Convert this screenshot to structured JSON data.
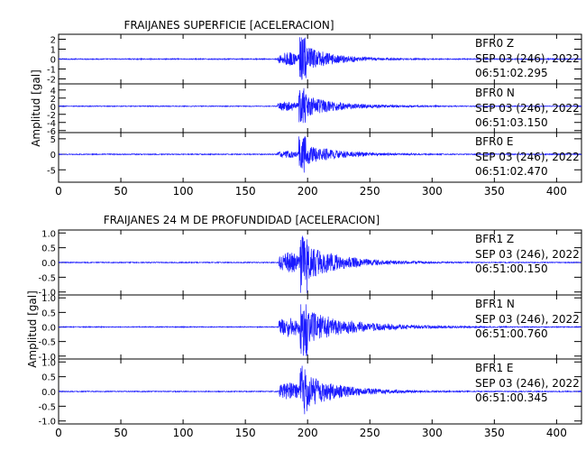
{
  "colors": {
    "trace": "#1a1aff",
    "axis": "#000000",
    "background": "#ffffff"
  },
  "chart_data": [
    {
      "type": "line",
      "title": "FRAIJANES SUPERFICIE [ACELERACION]",
      "xlabel": "",
      "ylabel": "Amplitud [gal]",
      "xlim": [
        0,
        420
      ],
      "x_ticks": [
        "0",
        "50",
        "100",
        "150",
        "200",
        "250",
        "300",
        "350",
        "400"
      ],
      "grid": false,
      "series": [
        {
          "name": "BFR0 Z",
          "station": "BFR0",
          "component": "Z",
          "date_text": "SEP 03 (246), 2022",
          "time_text": "06:51:02.295",
          "ylim": [
            -2.5,
            2.5
          ],
          "y_ticks": [
            "-2",
            "-1",
            "0",
            "1",
            "2"
          ],
          "signal": {
            "onset_s": 176,
            "peak_s": 196,
            "decay_end_s": 300,
            "pre_amplitude": 0.7,
            "peak_amplitude": 2.3,
            "noise_amplitude": 0.05
          }
        },
        {
          "name": "BFR0 N",
          "station": "BFR0",
          "component": "N",
          "date_text": "SEP 03 (246), 2022",
          "time_text": "06:51:03.150",
          "ylim": [
            -6.5,
            5.5
          ],
          "y_ticks": [
            "-6",
            "-4",
            "-2",
            "0",
            "2",
            "4"
          ],
          "signal": {
            "onset_s": 176,
            "peak_s": 196,
            "decay_end_s": 320,
            "pre_amplitude": 1.2,
            "peak_amplitude": 4.5,
            "noise_amplitude": 0.1
          }
        },
        {
          "name": "BFR0 E",
          "station": "BFR0",
          "component": "E",
          "date_text": "SEP 03 (246), 2022",
          "time_text": "06:51:02.470",
          "ylim": [
            -9,
            7
          ],
          "y_ticks": [
            "-5",
            "0",
            "5"
          ],
          "signal": {
            "onset_s": 176,
            "peak_s": 196,
            "decay_end_s": 310,
            "pre_amplitude": 1.2,
            "peak_amplitude": 6.0,
            "noise_amplitude": 0.15
          }
        }
      ]
    },
    {
      "type": "line",
      "title": "FRAIJANES 24 M DE PROFUNDIDAD [ACELERACION]",
      "xlabel": "",
      "ylabel": "Amplitud [gal]",
      "xlim": [
        0,
        420
      ],
      "x_ticks": [
        "0",
        "50",
        "100",
        "150",
        "200",
        "250",
        "300",
        "350",
        "400"
      ],
      "grid": false,
      "series": [
        {
          "name": "BFR1 Z",
          "station": "BFR1",
          "component": "Z",
          "date_text": "SEP 03 (246), 2022",
          "time_text": "06:51:00.150",
          "ylim": [
            -1.1,
            1.1
          ],
          "y_ticks": [
            "-1.0",
            "-0.5",
            "0.0",
            "0.5",
            "1.0"
          ],
          "signal": {
            "onset_s": 177,
            "peak_s": 197,
            "decay_end_s": 330,
            "pre_amplitude": 0.35,
            "peak_amplitude": 1.05,
            "noise_amplitude": 0.015
          }
        },
        {
          "name": "BFR1 N",
          "station": "BFR1",
          "component": "N",
          "date_text": "SEP 03 (246), 2022",
          "time_text": "06:51:00.760",
          "ylim": [
            -1.1,
            1.1
          ],
          "y_ticks": [
            "-1.0",
            "-0.5",
            "0.0",
            "0.5",
            "1.0"
          ],
          "signal": {
            "onset_s": 177,
            "peak_s": 197,
            "decay_end_s": 360,
            "pre_amplitude": 0.35,
            "peak_amplitude": 1.0,
            "noise_amplitude": 0.015
          }
        },
        {
          "name": "BFR1 E",
          "station": "BFR1",
          "component": "E",
          "date_text": "SEP 03 (246), 2022",
          "time_text": "06:51:00.345",
          "ylim": [
            -1.1,
            1.1
          ],
          "y_ticks": [
            "-1.0",
            "-0.5",
            "0.0",
            "0.5",
            "1.0"
          ],
          "signal": {
            "onset_s": 177,
            "peak_s": 197,
            "decay_end_s": 330,
            "pre_amplitude": 0.3,
            "peak_amplitude": 0.95,
            "noise_amplitude": 0.015
          }
        }
      ]
    }
  ]
}
